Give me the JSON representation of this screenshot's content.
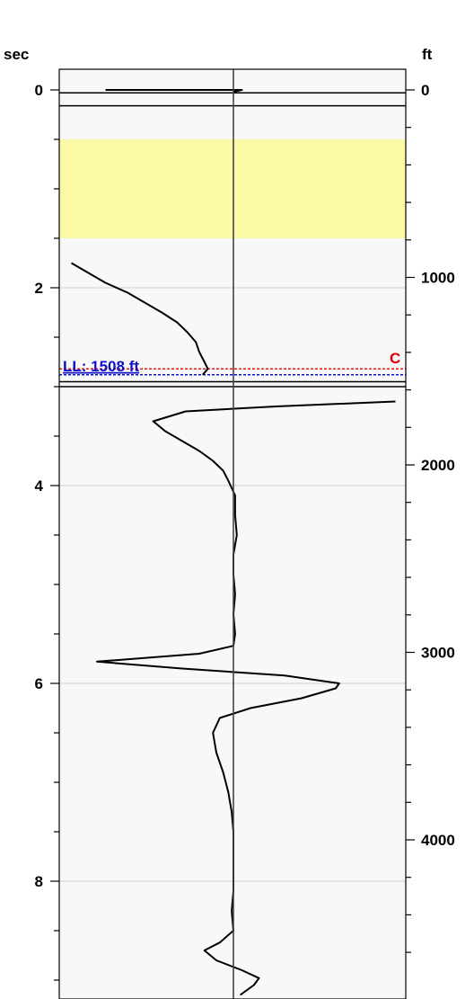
{
  "chart_data": {
    "type": "line",
    "left_axis": {
      "label": "sec",
      "ticks": [
        0,
        2,
        4,
        6,
        8
      ],
      "range": [
        0,
        9.2
      ]
    },
    "right_axis": {
      "label": "ft",
      "ticks": [
        0,
        1000,
        2000,
        3000,
        4000
      ],
      "range": [
        0,
        4750
      ]
    },
    "highlight_band_sec": [
      0.5,
      1.5
    ],
    "highlight_color": "#fbf8a6",
    "level_line": {
      "label": "LL: 1508 ft",
      "sec": 2.88,
      "color": "#1010c8"
    },
    "marker": {
      "label": "C",
      "sec": 2.82,
      "color": "#e00000"
    },
    "center_value": 0,
    "segments": [
      {
        "name": "",
        "points": [
          [
            0.0,
            -0.75
          ],
          [
            0.0,
            0.05
          ],
          [
            0.02,
            0.0
          ]
        ]
      },
      {
        "name": "",
        "points": [
          [
            1.75,
            -0.95
          ],
          [
            1.85,
            -0.85
          ],
          [
            1.95,
            -0.75
          ],
          [
            2.05,
            -0.62
          ],
          [
            2.15,
            -0.52
          ],
          [
            2.25,
            -0.42
          ],
          [
            2.35,
            -0.33
          ],
          [
            2.45,
            -0.27
          ],
          [
            2.55,
            -0.22
          ],
          [
            2.65,
            -0.2
          ],
          [
            2.75,
            -0.17
          ],
          [
            2.82,
            -0.15
          ],
          [
            2.88,
            -0.18
          ]
        ]
      },
      {
        "name": "",
        "points": [
          [
            3.15,
            0.95
          ],
          [
            3.2,
            0.25
          ],
          [
            3.25,
            -0.28
          ],
          [
            3.35,
            -0.47
          ],
          [
            3.45,
            -0.4
          ],
          [
            3.55,
            -0.3
          ],
          [
            3.65,
            -0.2
          ],
          [
            3.75,
            -0.12
          ],
          [
            3.85,
            -0.06
          ],
          [
            3.95,
            -0.03
          ],
          [
            4.1,
            0.01
          ],
          [
            4.3,
            0.01
          ],
          [
            4.5,
            0.02
          ],
          [
            4.7,
            0.0
          ],
          [
            4.9,
            0.0
          ],
          [
            5.1,
            0.01
          ],
          [
            5.3,
            0.0
          ],
          [
            5.5,
            0.01
          ],
          [
            5.62,
            0.0
          ],
          [
            5.7,
            -0.2
          ],
          [
            5.78,
            -0.8
          ],
          [
            5.85,
            -0.3
          ],
          [
            5.92,
            0.3
          ],
          [
            6.0,
            0.62
          ],
          [
            6.05,
            0.6
          ],
          [
            6.15,
            0.4
          ],
          [
            6.25,
            0.1
          ],
          [
            6.35,
            -0.08
          ],
          [
            6.5,
            -0.12
          ],
          [
            6.7,
            -0.1
          ],
          [
            6.9,
            -0.06
          ],
          [
            7.1,
            -0.03
          ],
          [
            7.3,
            -0.01
          ],
          [
            7.5,
            0.0
          ],
          [
            7.7,
            0.0
          ],
          [
            7.9,
            0.0
          ],
          [
            8.1,
            0.0
          ],
          [
            8.3,
            -0.01
          ],
          [
            8.5,
            0.0
          ],
          [
            8.62,
            -0.08
          ],
          [
            8.7,
            -0.17
          ],
          [
            8.8,
            -0.1
          ],
          [
            8.9,
            0.05
          ],
          [
            8.98,
            0.15
          ],
          [
            9.05,
            0.12
          ],
          [
            9.15,
            0.04
          ]
        ]
      }
    ]
  }
}
